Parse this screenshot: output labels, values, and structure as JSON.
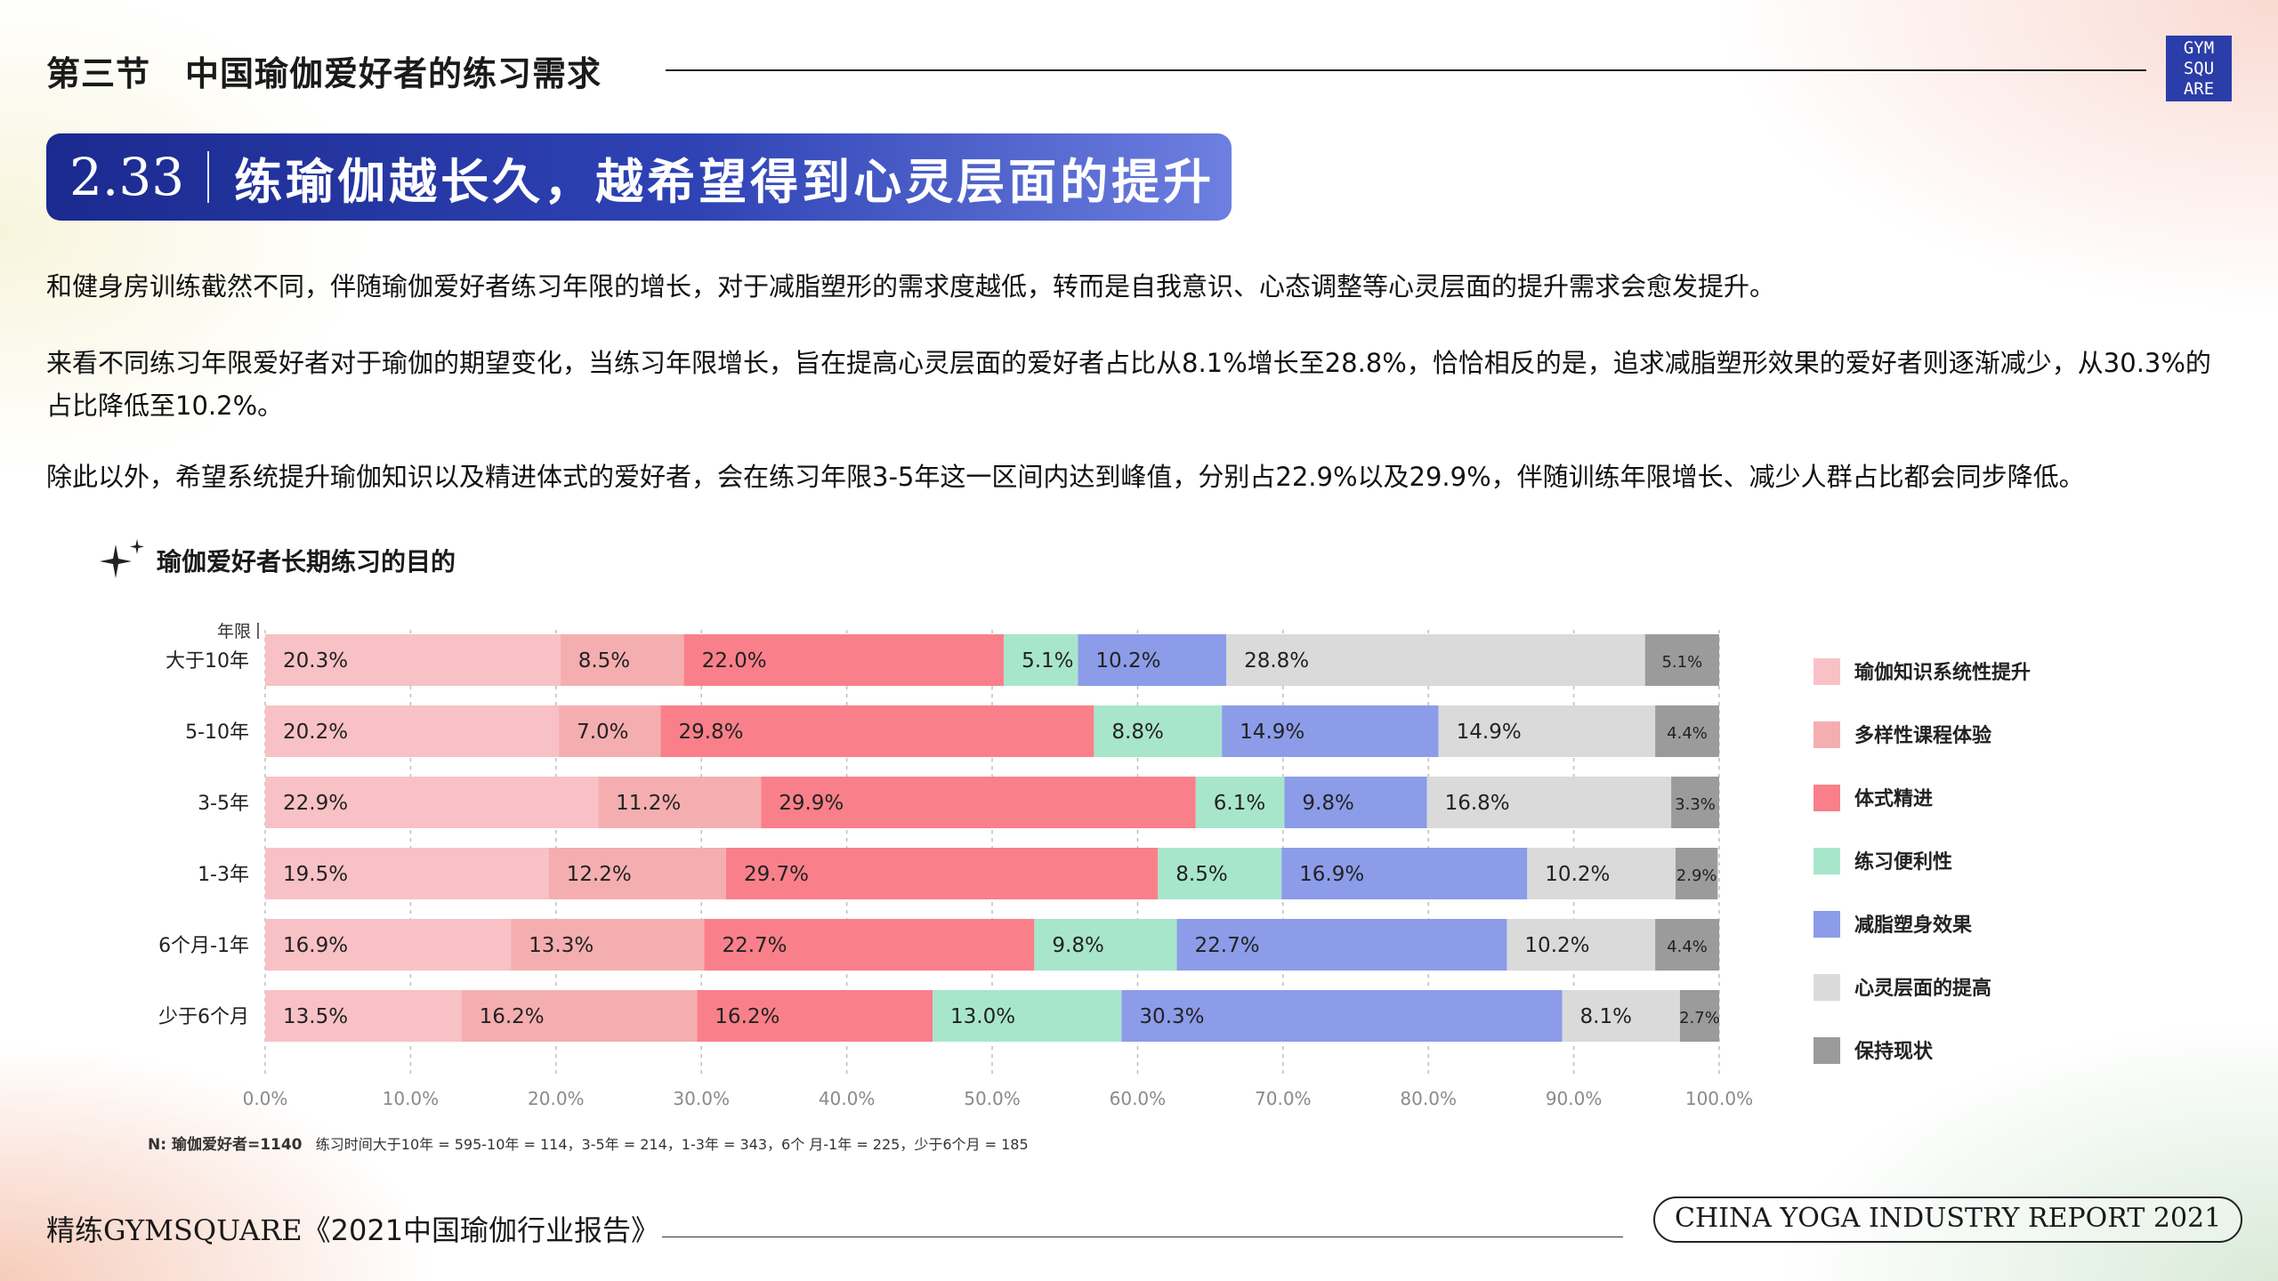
{
  "header": {
    "section_title": "第三节　中国瑜伽爱好者的练习需求",
    "logo_lines": [
      "GYM",
      "SQU",
      "ARE"
    ]
  },
  "banner": {
    "number": "2.33",
    "title": "练瑜伽越长久，越希望得到心灵层面的提升"
  },
  "paragraphs": [
    "和健身房训练截然不同，伴随瑜伽爱好者练习年限的增长，对于减脂塑形的需求度越低，转而是自我意识、心态调整等心灵层面的提升需求会愈发提升。",
    "来看不同练习年限爱好者对于瑜伽的期望变化，当练习年限增长，旨在提高心灵层面的爱好者占比从8.1%增长至28.8%，恰恰相反的是，追求减脂塑形效果的爱好者则逐渐减少，从30.3%的占比降低至10.2%。",
    "除此以外，希望系统提升瑜伽知识以及精进体式的爱好者，会在练习年限3-5年这一区间内达到峰值，分别占22.9%以及29.9%，伴随训练年限增长、减少人群占比都会同步降低。"
  ],
  "chart_data": {
    "type": "bar",
    "orientation": "horizontal",
    "stacked": true,
    "title": "瑜伽爱好者长期练习的目的",
    "ylabel": "年限",
    "xlim": [
      0,
      100
    ],
    "x_ticks": [
      "0.0%",
      "10.0%",
      "20.0%",
      "30.0%",
      "40.0%",
      "50.0%",
      "60.0%",
      "70.0%",
      "80.0%",
      "90.0%",
      "100.0%"
    ],
    "grid": true,
    "legend_position": "right",
    "categories": [
      "大于10年",
      "5-10年",
      "3-5年",
      "1-3年",
      "6个月-1年",
      "少于6个月"
    ],
    "series": [
      {
        "name": "瑜伽知识系统性提升",
        "color": "#f8c1c5",
        "values": [
          20.3,
          20.2,
          22.9,
          19.5,
          16.9,
          13.5
        ]
      },
      {
        "name": "多样性课程体验",
        "color": "#f5aeb0",
        "values": [
          8.5,
          7.0,
          11.2,
          12.2,
          13.3,
          16.2
        ]
      },
      {
        "name": "体式精进",
        "color": "#f9808a",
        "values": [
          22.0,
          29.8,
          29.9,
          29.7,
          22.7,
          16.2
        ]
      },
      {
        "name": "练习便利性",
        "color": "#a8e6cc",
        "values": [
          5.1,
          8.8,
          6.1,
          8.5,
          9.8,
          13.0
        ]
      },
      {
        "name": "减脂塑身效果",
        "color": "#8c9ce9",
        "values": [
          10.2,
          14.9,
          9.8,
          16.9,
          22.7,
          30.3
        ]
      },
      {
        "name": "心灵层面的提高",
        "color": "#dadada",
        "values": [
          28.8,
          14.9,
          16.8,
          10.2,
          10.2,
          8.1
        ]
      },
      {
        "name": "保持现状",
        "color": "#9b9b9b",
        "values": [
          5.1,
          4.4,
          3.3,
          2.9,
          4.4,
          2.7
        ]
      }
    ],
    "labels": [
      [
        "20.3%",
        "8.5%",
        "22.0%",
        "5.1%",
        "10.2%",
        "28.8%",
        "5.1%"
      ],
      [
        "20.2%",
        "7.0%",
        "29.8%",
        "8.8%",
        "14.9%",
        "14.9%",
        "4.4%"
      ],
      [
        "22.9%",
        "11.2%",
        "29.9%",
        "6.1%",
        "9.8%",
        "16.8%",
        "3.3%"
      ],
      [
        "19.5%",
        "12.2%",
        "29.7%",
        "8.5%",
        "16.9%",
        "10.2%",
        "2.9%"
      ],
      [
        "16.9%",
        "13.3%",
        "22.7%",
        "9.8%",
        "22.7%",
        "10.2%",
        "4.4%"
      ],
      [
        "13.5%",
        "16.2%",
        "16.2%",
        "13.0%",
        "30.3%",
        "8.1%",
        "2.7%"
      ]
    ]
  },
  "note": {
    "prefix": "N:  瑜伽爱好者=1140",
    "detail": "练习时间大于10年 = 595-10年 = 114，3-5年 = 214，1-3年 = 343，6个  月-1年 = 225，少于6个月 = 185"
  },
  "footer": {
    "left_prefix": "精练",
    "left_brand": "GYMSQUARE",
    "left_title": "《2021中国瑜伽行业报告》",
    "right": "CHINA YOGA INDUSTRY REPORT 2021"
  }
}
